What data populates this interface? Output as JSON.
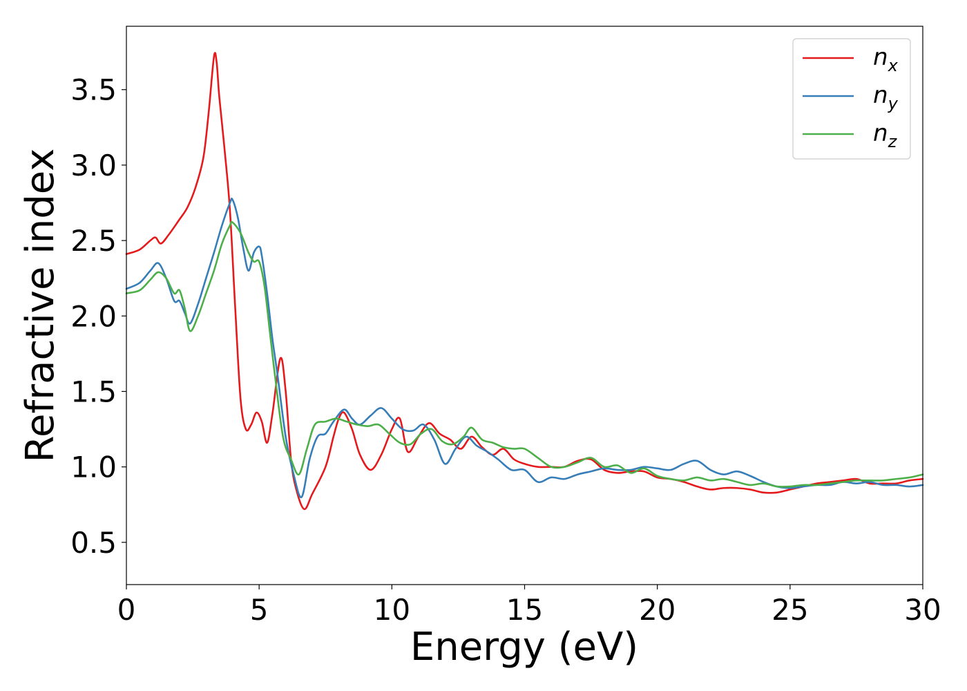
{
  "chart_data": {
    "type": "line",
    "title": "",
    "xlabel": "Energy (eV)",
    "ylabel": "Refractive index",
    "xlim": [
      0,
      30
    ],
    "ylim": [
      0.22,
      3.92
    ],
    "xticks": [
      0,
      5,
      10,
      15,
      20,
      25,
      30
    ],
    "xtick_labels": [
      "0",
      "5",
      "10",
      "15",
      "20",
      "25",
      "30"
    ],
    "yticks": [
      0.5,
      1.0,
      1.5,
      2.0,
      2.5,
      3.0,
      3.5
    ],
    "ytick_labels": [
      "0.5",
      "1.0",
      "1.5",
      "2.0",
      "2.5",
      "3.0",
      "3.5"
    ],
    "grid": false,
    "legend_position": "top-right",
    "series": [
      {
        "name": "n_x",
        "legend_base": "n",
        "legend_sub": "x",
        "color": "#e41a1c",
        "x": [
          0,
          0.5,
          0.9,
          1.1,
          1.3,
          1.6,
          2.0,
          2.3,
          2.6,
          2.9,
          3.1,
          3.3,
          3.4,
          3.5,
          3.7,
          3.9,
          4.1,
          4.3,
          4.5,
          4.7,
          4.9,
          5.1,
          5.3,
          5.5,
          5.8,
          6.0,
          6.2,
          6.4,
          6.7,
          7.0,
          7.5,
          7.8,
          8.0,
          8.2,
          8.5,
          8.8,
          9.2,
          9.6,
          10.0,
          10.3,
          10.6,
          11.0,
          11.4,
          11.8,
          12.2,
          12.6,
          13.0,
          13.4,
          13.8,
          14.2,
          14.6,
          15.0,
          15.5,
          16.0,
          16.5,
          17.0,
          17.5,
          18.0,
          18.5,
          19.0,
          19.5,
          20.0,
          20.5,
          21.0,
          21.5,
          22.0,
          22.5,
          23.0,
          23.5,
          24.0,
          24.5,
          25.0,
          25.5,
          26.0,
          26.5,
          27.0,
          27.5,
          28.0,
          28.5,
          29.0,
          29.5,
          30.0
        ],
        "y": [
          2.41,
          2.44,
          2.5,
          2.52,
          2.48,
          2.54,
          2.64,
          2.72,
          2.85,
          3.05,
          3.35,
          3.72,
          3.68,
          3.45,
          3.1,
          2.7,
          2.05,
          1.45,
          1.25,
          1.28,
          1.36,
          1.3,
          1.16,
          1.35,
          1.72,
          1.5,
          1.05,
          0.85,
          0.72,
          0.82,
          1.0,
          1.2,
          1.32,
          1.36,
          1.25,
          1.08,
          0.98,
          1.08,
          1.25,
          1.32,
          1.1,
          1.2,
          1.29,
          1.22,
          1.18,
          1.12,
          1.2,
          1.13,
          1.08,
          1.12,
          1.05,
          1.02,
          1.0,
          1.0,
          1.0,
          1.04,
          1.05,
          0.98,
          0.96,
          0.97,
          0.97,
          0.93,
          0.92,
          0.9,
          0.87,
          0.85,
          0.86,
          0.86,
          0.85,
          0.83,
          0.83,
          0.85,
          0.87,
          0.89,
          0.9,
          0.91,
          0.92,
          0.89,
          0.89,
          0.89,
          0.91,
          0.92
        ]
      },
      {
        "name": "n_y",
        "legend_base": "n",
        "legend_sub": "y",
        "color": "#377eb8",
        "x": [
          0,
          0.5,
          0.9,
          1.2,
          1.5,
          1.8,
          2.0,
          2.2,
          2.4,
          2.7,
          3.0,
          3.3,
          3.6,
          3.9,
          4.0,
          4.2,
          4.4,
          4.6,
          4.8,
          5.0,
          5.1,
          5.3,
          5.5,
          5.7,
          6.0,
          6.3,
          6.6,
          6.9,
          7.2,
          7.5,
          7.8,
          8.2,
          8.5,
          8.8,
          9.2,
          9.6,
          10.0,
          10.4,
          10.8,
          11.2,
          11.6,
          12.0,
          12.4,
          12.8,
          13.2,
          13.6,
          14.0,
          14.5,
          15.0,
          15.5,
          16.0,
          16.5,
          17.0,
          17.5,
          18.0,
          18.5,
          19.0,
          19.5,
          20.0,
          20.5,
          21.0,
          21.5,
          22.0,
          22.5,
          23.0,
          23.5,
          24.0,
          24.5,
          25.0,
          25.5,
          26.0,
          26.5,
          27.0,
          27.5,
          28.0,
          28.5,
          29.0,
          29.5,
          30.0
        ],
        "y": [
          2.18,
          2.22,
          2.3,
          2.35,
          2.25,
          2.1,
          2.1,
          2.02,
          1.95,
          2.08,
          2.25,
          2.42,
          2.6,
          2.75,
          2.77,
          2.65,
          2.45,
          2.3,
          2.42,
          2.46,
          2.4,
          2.15,
          1.85,
          1.6,
          1.2,
          0.95,
          0.8,
          1.05,
          1.2,
          1.22,
          1.3,
          1.38,
          1.32,
          1.28,
          1.34,
          1.39,
          1.32,
          1.25,
          1.24,
          1.28,
          1.18,
          1.02,
          1.12,
          1.2,
          1.14,
          1.1,
          1.05,
          0.98,
          0.98,
          0.9,
          0.93,
          0.92,
          0.95,
          0.97,
          0.99,
          0.98,
          0.98,
          1.0,
          0.99,
          0.98,
          1.02,
          1.04,
          0.98,
          0.95,
          0.97,
          0.94,
          0.9,
          0.87,
          0.86,
          0.87,
          0.88,
          0.88,
          0.9,
          0.89,
          0.9,
          0.88,
          0.88,
          0.87,
          0.88
        ]
      },
      {
        "name": "n_z",
        "legend_base": "n",
        "legend_sub": "z",
        "color": "#4daf4a",
        "x": [
          0,
          0.5,
          0.9,
          1.2,
          1.5,
          1.8,
          2.0,
          2.2,
          2.4,
          2.7,
          3.0,
          3.3,
          3.6,
          3.9,
          4.0,
          4.3,
          4.6,
          4.8,
          5.0,
          5.2,
          5.4,
          5.6,
          5.9,
          6.2,
          6.5,
          6.8,
          7.1,
          7.5,
          7.9,
          8.3,
          8.7,
          9.1,
          9.5,
          9.9,
          10.3,
          10.7,
          11.1,
          11.5,
          11.9,
          12.3,
          12.7,
          13.0,
          13.4,
          13.8,
          14.2,
          14.6,
          15.0,
          15.5,
          16.0,
          16.5,
          17.0,
          17.5,
          18.0,
          18.5,
          19.0,
          19.5,
          20.0,
          20.5,
          21.0,
          21.5,
          22.0,
          22.5,
          23.0,
          23.5,
          24.0,
          24.5,
          25.0,
          25.5,
          26.0,
          26.5,
          27.0,
          27.5,
          28.0,
          28.5,
          29.0,
          29.5,
          30.0
        ],
        "y": [
          2.15,
          2.17,
          2.24,
          2.29,
          2.25,
          2.15,
          2.17,
          2.05,
          1.9,
          2.0,
          2.15,
          2.3,
          2.48,
          2.6,
          2.62,
          2.55,
          2.42,
          2.36,
          2.36,
          2.2,
          1.9,
          1.6,
          1.2,
          1.05,
          0.95,
          1.12,
          1.28,
          1.3,
          1.32,
          1.3,
          1.28,
          1.27,
          1.28,
          1.22,
          1.16,
          1.15,
          1.22,
          1.25,
          1.17,
          1.15,
          1.2,
          1.26,
          1.18,
          1.16,
          1.13,
          1.12,
          1.12,
          1.06,
          1.0,
          1.0,
          1.03,
          1.06,
          1.0,
          1.01,
          0.96,
          0.99,
          0.94,
          0.92,
          0.91,
          0.93,
          0.91,
          0.92,
          0.9,
          0.88,
          0.89,
          0.87,
          0.87,
          0.88,
          0.88,
          0.89,
          0.9,
          0.91,
          0.91,
          0.91,
          0.92,
          0.93,
          0.95
        ]
      }
    ]
  }
}
